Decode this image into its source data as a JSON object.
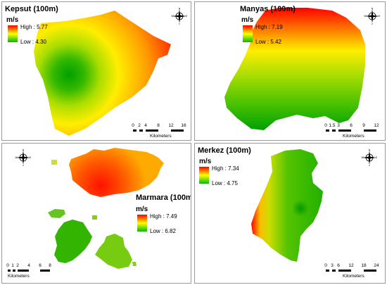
{
  "unit_label": "m/s",
  "high_prefix": "High : ",
  "low_prefix": "Low : ",
  "compass_letters": {
    "n": "N",
    "s": "S",
    "e": "E",
    "w": "W"
  },
  "scale_unit": "Kilometers",
  "legend_colors": {
    "high": "#ff0000",
    "mid": "#ffff00",
    "low": "#00bb00"
  },
  "maps": [
    {
      "id": "kepsut",
      "title": "Kepsut (100m)",
      "high": "5.77",
      "low": "4.30",
      "scale_ticks": [
        "0",
        "2",
        "4",
        "8",
        "12",
        "16"
      ]
    },
    {
      "id": "manyas",
      "title": "Manyas (100m)",
      "high": "7.19",
      "low": "5.42",
      "scale_ticks": [
        "0",
        "1.5",
        "3",
        "6",
        "9",
        "12"
      ]
    },
    {
      "id": "marmara",
      "title": "Marmara (100m)",
      "high": "7.49",
      "low": "6.82",
      "scale_ticks": [
        "0",
        "1",
        "2",
        "4",
        "6",
        "8"
      ]
    },
    {
      "id": "merkez",
      "title": "Merkez (100m)",
      "high": "7.34",
      "low": "4.75",
      "scale_ticks": [
        "0",
        "3",
        "6",
        "12",
        "18",
        "24"
      ]
    }
  ]
}
